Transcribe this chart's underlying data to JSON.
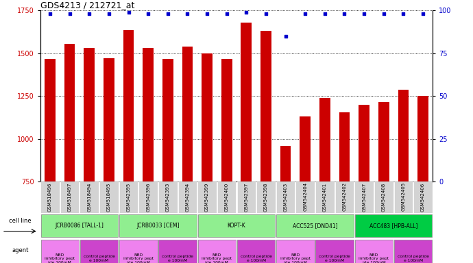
{
  "title": "GDS4213 / 212721_at",
  "samples": [
    "GSM518496",
    "GSM518497",
    "GSM518494",
    "GSM518495",
    "GSM542395",
    "GSM542396",
    "GSM542393",
    "GSM542394",
    "GSM542399",
    "GSM542400",
    "GSM542397",
    "GSM542398",
    "GSM542403",
    "GSM542404",
    "GSM542401",
    "GSM542402",
    "GSM542407",
    "GSM542408",
    "GSM542405",
    "GSM542406"
  ],
  "counts": [
    1465,
    1555,
    1530,
    1470,
    1635,
    1530,
    1465,
    1540,
    1500,
    1465,
    1680,
    1630,
    960,
    1130,
    1240,
    1155,
    1200,
    1215,
    1285,
    1250
  ],
  "percentile_ranks": [
    98,
    98,
    98,
    98,
    99,
    98,
    98,
    98,
    98,
    98,
    99,
    98,
    85,
    98,
    98,
    98,
    98,
    98,
    98,
    98
  ],
  "ylim_left": [
    750,
    1750
  ],
  "ylim_right": [
    0,
    100
  ],
  "yticks_left": [
    750,
    1000,
    1250,
    1500,
    1750
  ],
  "yticks_right": [
    0,
    25,
    50,
    75,
    100
  ],
  "bar_color": "#cc0000",
  "dot_color": "#0000cc",
  "background_color": "#ffffff",
  "tick_bg_color": "#d3d3d3",
  "cell_lines": [
    {
      "label": "JCRB0086 [TALL-1]",
      "start": 0,
      "end": 4,
      "color": "#90EE90"
    },
    {
      "label": "JCRB0033 [CEM]",
      "start": 4,
      "end": 8,
      "color": "#90EE90"
    },
    {
      "label": "KOPT-K",
      "start": 8,
      "end": 12,
      "color": "#90EE90"
    },
    {
      "label": "ACC525 [DND41]",
      "start": 12,
      "end": 16,
      "color": "#90EE90"
    },
    {
      "label": "ACC483 [HPB-ALL]",
      "start": 16,
      "end": 20,
      "color": "#00cc44"
    }
  ],
  "agents": [
    {
      "label": "NBD\ninhibitory pept\nide 100mM",
      "start": 0,
      "end": 2,
      "color": "#ee82ee"
    },
    {
      "label": "control peptide\ne 100mM",
      "start": 2,
      "end": 4,
      "color": "#cc44cc"
    },
    {
      "label": "NBD\ninhibitory pept\nide 100mM",
      "start": 4,
      "end": 6,
      "color": "#ee82ee"
    },
    {
      "label": "control peptide\ne 100mM",
      "start": 6,
      "end": 8,
      "color": "#cc44cc"
    },
    {
      "label": "NBD\ninhibitory pept\nide 100mM",
      "start": 8,
      "end": 10,
      "color": "#ee82ee"
    },
    {
      "label": "control peptide\ne 100mM",
      "start": 10,
      "end": 12,
      "color": "#cc44cc"
    },
    {
      "label": "NBD\ninhibitory pept\nide 100mM",
      "start": 12,
      "end": 14,
      "color": "#ee82ee"
    },
    {
      "label": "control peptide\ne 100mM",
      "start": 14,
      "end": 16,
      "color": "#cc44cc"
    },
    {
      "label": "NBD\ninhibitory pept\nide 100mM",
      "start": 16,
      "end": 18,
      "color": "#ee82ee"
    },
    {
      "label": "control peptide\ne 100mM",
      "start": 18,
      "end": 20,
      "color": "#cc44cc"
    }
  ],
  "legend_count_color": "#cc0000",
  "legend_dot_color": "#0000cc",
  "dotted_line_color": "#000000",
  "axis_label_color_left": "#cc0000",
  "axis_label_color_right": "#0000cc"
}
